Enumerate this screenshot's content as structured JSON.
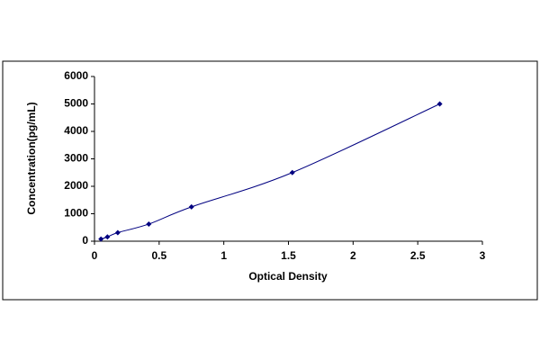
{
  "chart_data": {
    "type": "scatter",
    "x_label": "Optical Density",
    "y_label": "Concentration(pg/mL)",
    "series": [
      {
        "color": "#000080",
        "x": [
          0.05,
          0.1,
          0.18,
          0.42,
          0.75,
          1.53,
          2.67
        ],
        "values": [
          78,
          156,
          312,
          625,
          1250,
          2500,
          5000
        ]
      }
    ],
    "xlim": [
      0,
      3
    ],
    "xticks": [
      0,
      0.5,
      1,
      1.5,
      2,
      2.5,
      3
    ],
    "ylim": [
      0,
      6000
    ],
    "yticks": [
      0,
      1000,
      2000,
      3000,
      4000,
      5000,
      6000
    ],
    "grid": false,
    "smooth_line": true
  }
}
